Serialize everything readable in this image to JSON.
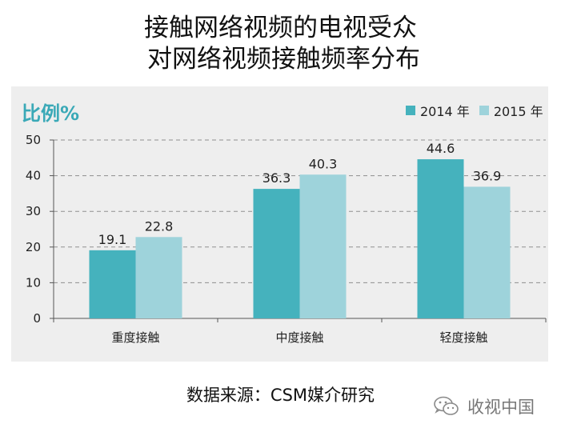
{
  "title": {
    "line1": "接触网络视频的电视受众",
    "line2": "对网络视频接触频率分布"
  },
  "colors": {
    "panel_bg": "#eeeeee",
    "series_2014": "#45b2bd",
    "series_2015": "#9ed3db",
    "accent_label": "#3aa9b7"
  },
  "footer": {
    "source": "数据来源：CSM媒介研究",
    "watermark_text": "收视中国",
    "watermark_icon": "wechat-icon"
  },
  "chart_data": {
    "type": "bar",
    "title": "接触网络视频的电视受众 对网络视频接触频率分布",
    "ylabel": "比例%",
    "xlabel": "",
    "ylim": [
      0,
      50
    ],
    "yticks": [
      0,
      10,
      20,
      30,
      40,
      50
    ],
    "categories": [
      "重度接触",
      "中度接触",
      "轻度接触"
    ],
    "series": [
      {
        "name": "2014 年",
        "values": [
          19.1,
          36.3,
          44.6
        ]
      },
      {
        "name": "2015 年",
        "values": [
          22.8,
          40.3,
          36.9
        ]
      }
    ],
    "grid": true,
    "legend_position": "top-right"
  }
}
